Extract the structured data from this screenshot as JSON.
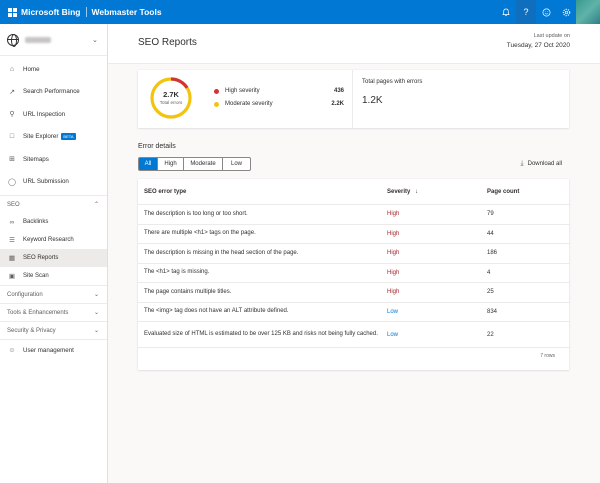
{
  "topbar": {
    "brand": "Microsoft Bing",
    "product": "Webmaster Tools",
    "icons": [
      "bell-icon",
      "help-icon",
      "smiley-icon",
      "gear-icon"
    ]
  },
  "sidebar": {
    "site_selector": "",
    "items": [
      {
        "label": "Home",
        "icon": "home-icon"
      },
      {
        "label": "Search Performance",
        "icon": "trend-icon"
      },
      {
        "label": "URL Inspection",
        "icon": "search-icon"
      },
      {
        "label": "Site Explorer",
        "icon": "folder-icon",
        "badge": "BETA"
      },
      {
        "label": "Sitemaps",
        "icon": "sitemap-icon"
      },
      {
        "label": "URL Submission",
        "icon": "globe-icon"
      }
    ],
    "seo_section": "SEO",
    "seo_items": [
      {
        "label": "Backlinks",
        "icon": "link-icon"
      },
      {
        "label": "Keyword Research",
        "icon": "keyword-icon"
      },
      {
        "label": "SEO Reports",
        "icon": "report-icon"
      },
      {
        "label": "Site Scan",
        "icon": "scan-icon"
      }
    ],
    "sections": [
      "Configuration",
      "Tools & Enhancements",
      "Security & Privacy"
    ],
    "user_management": "User management"
  },
  "header": {
    "title": "SEO Reports",
    "last_update_label": "Last update on",
    "last_update_date": "Tuesday, 27 Oct 2020"
  },
  "summary": {
    "total_errors": "2.7K",
    "total_errors_label": "Total errors",
    "high_label": "High severity",
    "high_value": "436",
    "moderate_label": "Moderate severity",
    "moderate_value": "2.2K",
    "high_fraction": 0.16,
    "colors": {
      "high": "#d13438",
      "moderate": "#f2c40f"
    },
    "pages_label": "Total pages with errors",
    "pages_value": "1.2K"
  },
  "details": {
    "title": "Error details",
    "filters": [
      "All",
      "High",
      "Moderate",
      "Low"
    ],
    "active_filter": "All",
    "download": "Download all",
    "columns": [
      "SEO error type",
      "Severity",
      "Page count"
    ],
    "rows": [
      {
        "type": "The description is too long or too short.",
        "severity": "High",
        "count": "79"
      },
      {
        "type": "There are multiple <h1> tags on the page.",
        "severity": "High",
        "count": "44"
      },
      {
        "type": "The description is missing in the head section of the page.",
        "severity": "High",
        "count": "186"
      },
      {
        "type": "The <h1> tag is missing.",
        "severity": "High",
        "count": "4"
      },
      {
        "type": "The page contains multiple titles.",
        "severity": "High",
        "count": "25"
      },
      {
        "type": "The <img> tag does not have an ALT attribute defined.",
        "severity": "Low",
        "count": "834"
      },
      {
        "type": "Evaluated size of HTML is estimated to be over 125 KB and risks not being fully cached.",
        "severity": "Low",
        "count": "22"
      }
    ],
    "row_count": "7 rows"
  }
}
